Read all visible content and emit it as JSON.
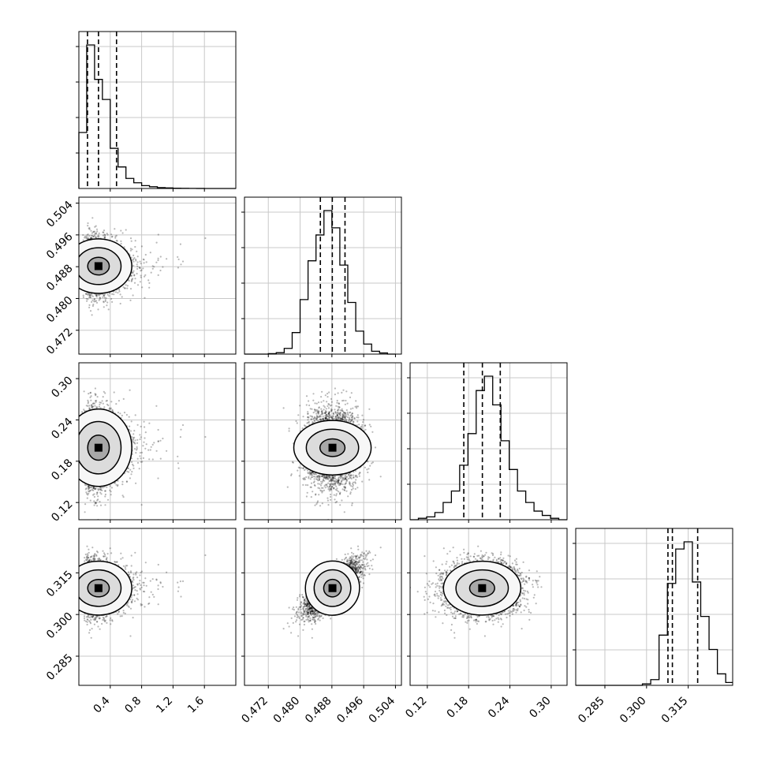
{
  "chart_data": {
    "type": "corner",
    "title": "",
    "parameters": [
      {
        "name": "",
        "range": [
          0.0,
          2.0
        ],
        "ticks": [
          "0.4",
          "0.8",
          "1.2",
          "1.6"
        ],
        "tick_values": [
          0.4,
          0.8,
          1.2,
          1.6
        ]
      },
      {
        "name": "",
        "range": [
          0.466,
          0.5055
        ],
        "ticks": [
          "0.472",
          "0.480",
          "0.488",
          "0.496",
          "0.504"
        ],
        "tick_values": [
          0.472,
          0.48,
          0.488,
          0.496,
          0.504
        ]
      },
      {
        "name": "",
        "range": [
          0.095,
          0.323
        ],
        "ticks": [
          "0.12",
          "0.18",
          "0.24",
          "0.30"
        ],
        "tick_values": [
          0.12,
          0.18,
          0.24,
          0.3
        ]
      },
      {
        "name": "",
        "range": [
          0.2745,
          0.331
        ],
        "ticks": [
          "0.285",
          "0.300",
          "0.315"
        ],
        "tick_values": [
          0.285,
          0.3,
          0.315
        ]
      }
    ],
    "histograms": [
      {
        "param": 0,
        "bin_edges": [
          0.0,
          0.1,
          0.2,
          0.3,
          0.4,
          0.5,
          0.6,
          0.7,
          0.8,
          0.9,
          1.0,
          1.1,
          1.2,
          1.3,
          1.4,
          1.5,
          1.6,
          1.7,
          1.8,
          1.9,
          2.0
        ],
        "counts": [
          0.39,
          1.0,
          0.76,
          0.62,
          0.28,
          0.15,
          0.07,
          0.04,
          0.02,
          0.012,
          0.006,
          0.004,
          0.002,
          0.001,
          0.0005,
          0.0003,
          0.0002,
          0.0001,
          0.0,
          0.0
        ],
        "quantiles": [
          0.11,
          0.25,
          0.48
        ]
      },
      {
        "param": 1,
        "bin_edges": [
          0.466,
          0.468,
          0.47,
          0.472,
          0.474,
          0.476,
          0.478,
          0.48,
          0.482,
          0.484,
          0.486,
          0.488,
          0.49,
          0.492,
          0.494,
          0.496,
          0.498,
          0.5,
          0.502,
          0.504
        ],
        "counts": [
          0.0,
          0.0,
          0.0,
          0.003,
          0.01,
          0.04,
          0.15,
          0.38,
          0.65,
          0.83,
          1.0,
          0.88,
          0.62,
          0.36,
          0.16,
          0.07,
          0.02,
          0.008,
          0.0
        ],
        "quantiles": [
          0.4851,
          0.4881,
          0.4913
        ]
      },
      {
        "param": 2,
        "bin_edges": [
          0.095,
          0.107,
          0.119,
          0.131,
          0.143,
          0.155,
          0.167,
          0.179,
          0.191,
          0.203,
          0.215,
          0.227,
          0.239,
          0.251,
          0.263,
          0.275,
          0.287,
          0.299,
          0.311,
          0.323
        ],
        "counts": [
          0.0,
          0.01,
          0.02,
          0.05,
          0.12,
          0.2,
          0.38,
          0.6,
          0.9,
          1.0,
          0.8,
          0.55,
          0.35,
          0.2,
          0.12,
          0.06,
          0.03,
          0.01,
          0.0
        ],
        "quantiles": [
          0.173,
          0.2,
          0.226
        ]
      },
      {
        "param": 3,
        "bin_edges": [
          0.2745,
          0.2775,
          0.2805,
          0.2835,
          0.2865,
          0.2895,
          0.2925,
          0.2955,
          0.2985,
          0.3015,
          0.3045,
          0.3075,
          0.3105,
          0.3135,
          0.3165,
          0.3195,
          0.3225,
          0.3255,
          0.3285,
          0.331
        ],
        "counts": [
          0.0,
          0.0,
          0.0,
          0.0,
          0.0,
          0.0,
          0.0,
          0.0,
          0.01,
          0.04,
          0.35,
          0.71,
          0.95,
          1.0,
          0.72,
          0.48,
          0.25,
          0.08,
          0.02
        ],
        "quantiles": [
          0.3077,
          0.3093,
          0.3184
        ]
      }
    ],
    "contour_levels": 3,
    "quantiles_shown": [
      0.16,
      0.5,
      0.84
    ],
    "grid": true
  }
}
